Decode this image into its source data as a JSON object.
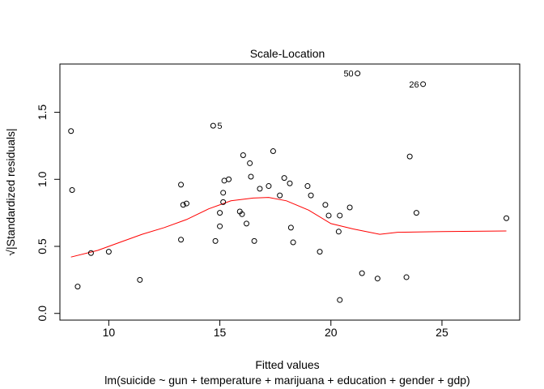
{
  "chart_data": {
    "type": "scatter",
    "title": "Scale-Location",
    "xlabel": "Fitted values",
    "sublabel": "lm(suicide ~ gun + temperature + marijuana + education + gender + gdp)",
    "ylabel": "√|Standardized residuals|",
    "xlim": [
      7.8,
      28.5
    ],
    "ylim": [
      -0.05,
      1.86
    ],
    "xticks": [
      10,
      15,
      20,
      25
    ],
    "xtick_labels": [
      "10",
      "15",
      "20",
      "25"
    ],
    "yticks": [
      0.0,
      0.5,
      1.0,
      1.5
    ],
    "ytick_labels": [
      "0.0",
      "0.5",
      "1.0",
      "1.5"
    ],
    "grid": false,
    "colors": {
      "points": "#000000",
      "smooth": "#ff0000"
    },
    "points": [
      {
        "x": 8.3,
        "y": 1.36
      },
      {
        "x": 8.35,
        "y": 0.92
      },
      {
        "x": 8.6,
        "y": 0.2
      },
      {
        "x": 9.2,
        "y": 0.45
      },
      {
        "x": 10.0,
        "y": 0.46
      },
      {
        "x": 11.4,
        "y": 0.25
      },
      {
        "x": 13.25,
        "y": 0.96
      },
      {
        "x": 13.25,
        "y": 0.55
      },
      {
        "x": 13.35,
        "y": 0.81
      },
      {
        "x": 13.5,
        "y": 0.82
      },
      {
        "x": 14.8,
        "y": 0.54
      },
      {
        "x": 15.0,
        "y": 0.75
      },
      {
        "x": 15.0,
        "y": 0.65
      },
      {
        "x": 15.15,
        "y": 0.9
      },
      {
        "x": 15.15,
        "y": 0.83
      },
      {
        "x": 15.2,
        "y": 0.99
      },
      {
        "x": 15.4,
        "y": 1.0
      },
      {
        "x": 15.9,
        "y": 0.76
      },
      {
        "x": 16.0,
        "y": 0.74
      },
      {
        "x": 16.05,
        "y": 1.18
      },
      {
        "x": 16.2,
        "y": 0.67
      },
      {
        "x": 16.35,
        "y": 1.12
      },
      {
        "x": 16.4,
        "y": 1.02
      },
      {
        "x": 16.55,
        "y": 0.54
      },
      {
        "x": 16.8,
        "y": 0.93
      },
      {
        "x": 17.2,
        "y": 0.95
      },
      {
        "x": 17.4,
        "y": 1.21
      },
      {
        "x": 17.7,
        "y": 0.88
      },
      {
        "x": 17.9,
        "y": 1.01
      },
      {
        "x": 18.15,
        "y": 0.97
      },
      {
        "x": 18.2,
        "y": 0.64
      },
      {
        "x": 18.3,
        "y": 0.53
      },
      {
        "x": 18.95,
        "y": 0.95
      },
      {
        "x": 19.1,
        "y": 0.88
      },
      {
        "x": 19.5,
        "y": 0.46
      },
      {
        "x": 19.75,
        "y": 0.81
      },
      {
        "x": 19.9,
        "y": 0.73
      },
      {
        "x": 20.35,
        "y": 0.61
      },
      {
        "x": 20.4,
        "y": 0.73
      },
      {
        "x": 20.4,
        "y": 0.1
      },
      {
        "x": 20.85,
        "y": 0.79
      },
      {
        "x": 21.4,
        "y": 0.3
      },
      {
        "x": 22.1,
        "y": 0.26
      },
      {
        "x": 23.4,
        "y": 0.27
      },
      {
        "x": 23.55,
        "y": 1.17
      },
      {
        "x": 23.85,
        "y": 0.75
      },
      {
        "x": 27.9,
        "y": 0.71
      },
      {
        "x": 14.7,
        "y": 1.4,
        "label": "5"
      },
      {
        "x": 21.2,
        "y": 1.79,
        "label": "50"
      },
      {
        "x": 24.15,
        "y": 1.71,
        "label": "26"
      }
    ],
    "smooth": [
      {
        "x": 8.3,
        "y": 0.42
      },
      {
        "x": 9.5,
        "y": 0.47
      },
      {
        "x": 10.5,
        "y": 0.53
      },
      {
        "x": 11.5,
        "y": 0.59
      },
      {
        "x": 12.5,
        "y": 0.64
      },
      {
        "x": 13.5,
        "y": 0.7
      },
      {
        "x": 14.5,
        "y": 0.78
      },
      {
        "x": 15.5,
        "y": 0.84
      },
      {
        "x": 16.5,
        "y": 0.86
      },
      {
        "x": 17.2,
        "y": 0.865
      },
      {
        "x": 18.0,
        "y": 0.84
      },
      {
        "x": 19.0,
        "y": 0.77
      },
      {
        "x": 20.0,
        "y": 0.67
      },
      {
        "x": 21.0,
        "y": 0.63
      },
      {
        "x": 22.2,
        "y": 0.59
      },
      {
        "x": 23.0,
        "y": 0.605
      },
      {
        "x": 25.0,
        "y": 0.61
      },
      {
        "x": 27.9,
        "y": 0.615
      }
    ]
  }
}
